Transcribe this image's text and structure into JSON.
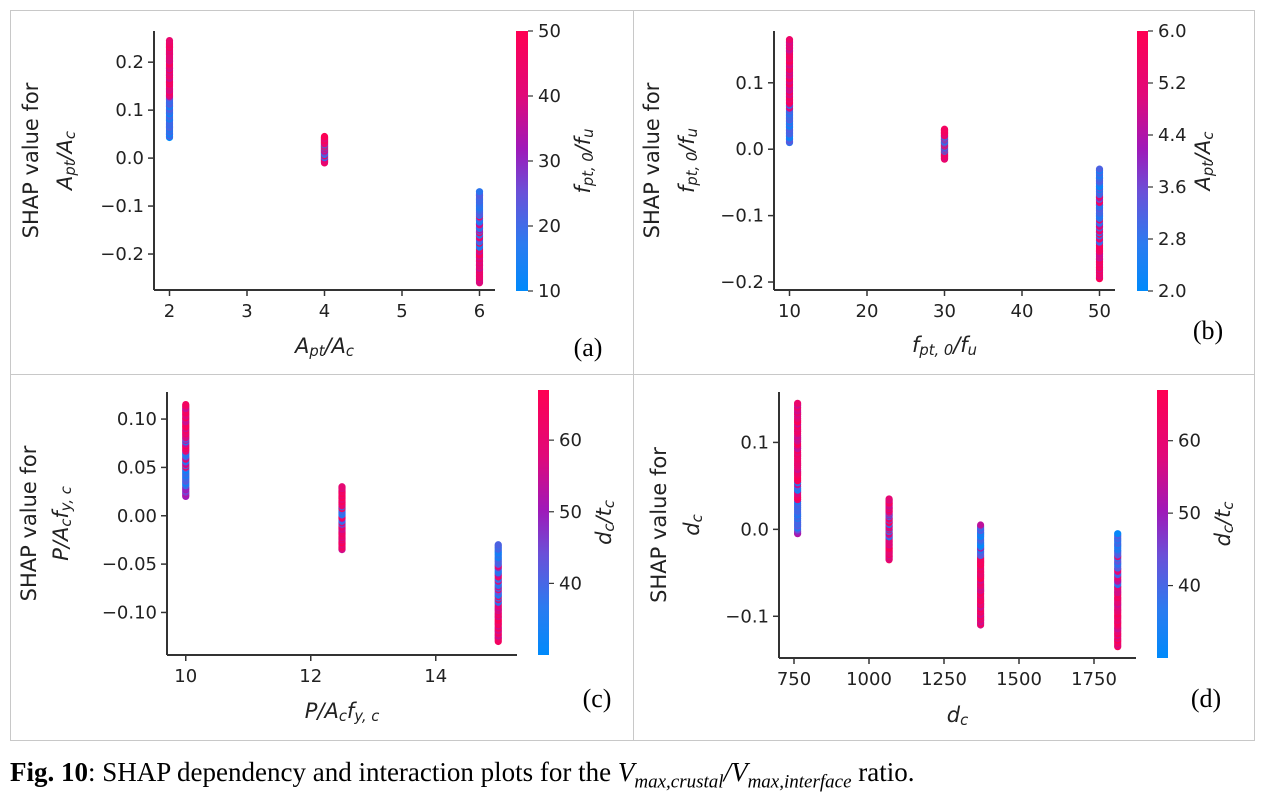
{
  "caption": {
    "label": "Fig. 10",
    "text_before": ": SHAP dependency and interaction plots for the ",
    "math": "Vmax,crustal/Vmax,interface",
    "text_after": " ratio."
  },
  "colors": {
    "low": "#1e88e5",
    "mid": "#7c3dc8",
    "high": "#ff0d57",
    "axis": "#333333",
    "frame": "#c8c8c8"
  },
  "chart_data": [
    {
      "type": "scatter",
      "panel": "(a)",
      "xlabel": "Apt/Ac",
      "ylabel_line1": "SHAP value for",
      "ylabel_line2": "Apt/Ac",
      "xlim": [
        1.8,
        6.2
      ],
      "ylim": [
        -0.275,
        0.265
      ],
      "xticks": [
        2,
        3,
        4,
        5,
        6
      ],
      "xtick_labels": [
        "2",
        "3",
        "4",
        "5",
        "6"
      ],
      "yticks": [
        -0.2,
        -0.1,
        0.0,
        0.1,
        0.2
      ],
      "ytick_labels": [
        "−0.2",
        "−0.1",
        "0.0",
        "0.1",
        "0.2"
      ],
      "colorbar": {
        "label": "fpt,0/fu",
        "min": 10,
        "max": 50,
        "ticks": [
          10,
          20,
          30,
          40,
          50
        ],
        "tick_labels": [
          "10",
          "20",
          "30",
          "40",
          "50"
        ]
      },
      "points": [
        {
          "x": 2,
          "y_min": 0.043,
          "y_max": 0.245,
          "low_y": [
            0.043,
            0.125
          ],
          "high_y": [
            0.13,
            0.245
          ]
        },
        {
          "x": 4,
          "y_min": -0.01,
          "y_max": 0.045,
          "low_y": [
            0.0,
            0.03
          ],
          "high_y": [
            -0.01,
            0.045
          ]
        },
        {
          "x": 6,
          "y_min": -0.26,
          "y_max": -0.07,
          "low_y": [
            -0.2,
            -0.07
          ],
          "high_y": [
            -0.26,
            -0.12
          ]
        }
      ]
    },
    {
      "type": "scatter",
      "panel": "(b)",
      "xlabel": "fpt,0/fu",
      "ylabel_line1": "SHAP value for",
      "ylabel_line2": "fpt,0/fu",
      "xlim": [
        8,
        52
      ],
      "ylim": [
        -0.212,
        0.178
      ],
      "xticks": [
        10,
        20,
        30,
        40,
        50
      ],
      "xtick_labels": [
        "10",
        "20",
        "30",
        "40",
        "50"
      ],
      "yticks": [
        -0.2,
        -0.1,
        0.0,
        0.1
      ],
      "ytick_labels": [
        "−0.2",
        "−0.1",
        "0.0",
        "0.1"
      ],
      "colorbar": {
        "label": "Apt/Ac",
        "min": 2.0,
        "max": 6.0,
        "ticks": [
          2.0,
          2.8,
          3.6,
          4.4,
          5.2,
          6.0
        ],
        "tick_labels": [
          "2.0",
          "2.8",
          "3.6",
          "4.4",
          "5.2",
          "6.0"
        ]
      },
      "points": [
        {
          "x": 10,
          "y_min": 0.01,
          "y_max": 0.165,
          "low_y": [
            0.01,
            0.07
          ],
          "high_y": [
            0.06,
            0.165
          ]
        },
        {
          "x": 30,
          "y_min": -0.015,
          "y_max": 0.03,
          "low_y": [
            -0.005,
            0.02
          ],
          "high_y": [
            -0.015,
            0.03
          ]
        },
        {
          "x": 50,
          "y_min": -0.195,
          "y_max": -0.03,
          "low_y": [
            -0.14,
            -0.03
          ],
          "high_y": [
            -0.195,
            -0.07
          ]
        }
      ]
    },
    {
      "type": "scatter",
      "panel": "(c)",
      "xlabel": "P/Acfy,c",
      "ylabel_line1": "SHAP value for",
      "ylabel_line2": "P/Acfy,c",
      "xlim": [
        9.7,
        15.3
      ],
      "ylim": [
        -0.144,
        0.128
      ],
      "xticks": [
        10,
        12,
        14
      ],
      "xtick_labels": [
        "10",
        "12",
        "14"
      ],
      "yticks": [
        -0.1,
        -0.05,
        0.0,
        0.05,
        0.1
      ],
      "ytick_labels": [
        "−0.10",
        "−0.05",
        "0.00",
        "0.05",
        "0.10"
      ],
      "colorbar": {
        "label": "dc/tc",
        "min": 30,
        "max": 67,
        "ticks": [
          40,
          50,
          60
        ],
        "tick_labels": [
          "40",
          "50",
          "60"
        ]
      },
      "points": [
        {
          "x": 10,
          "y_min": 0.02,
          "y_max": 0.115,
          "low_y": [
            0.03,
            0.08
          ],
          "high_y": [
            0.05,
            0.115
          ]
        },
        {
          "x": 12.5,
          "y_min": -0.035,
          "y_max": 0.03,
          "low_y": [
            -0.01,
            0.01
          ],
          "high_y": [
            -0.035,
            0.03
          ]
        },
        {
          "x": 15,
          "y_min": -0.13,
          "y_max": -0.03,
          "low_y": [
            -0.09,
            -0.03
          ],
          "high_y": [
            -0.13,
            -0.05
          ]
        }
      ]
    },
    {
      "type": "scatter",
      "panel": "(d)",
      "xlabel": "dc",
      "ylabel_line1": "SHAP value for",
      "ylabel_line2": "dc",
      "xlim": [
        700,
        1890
      ],
      "ylim": [
        -0.148,
        0.158
      ],
      "xticks": [
        750,
        1000,
        1250,
        1500,
        1750
      ],
      "xtick_labels": [
        "750",
        "1000",
        "1250",
        "1500",
        "1750"
      ],
      "yticks": [
        -0.1,
        0.0,
        0.1
      ],
      "ytick_labels": [
        "−0.1",
        "0.0",
        "0.1"
      ],
      "colorbar": {
        "label": "dc/tc",
        "min": 30,
        "max": 67,
        "ticks": [
          40,
          50,
          60
        ],
        "tick_labels": [
          "40",
          "50",
          "60"
        ]
      },
      "points": [
        {
          "x": 762,
          "y_min": -0.005,
          "y_max": 0.145,
          "low_y": [
            0.0,
            0.06
          ],
          "high_y": [
            0.02,
            0.145
          ]
        },
        {
          "x": 1067,
          "y_min": -0.035,
          "y_max": 0.035,
          "low_y": [
            -0.01,
            0.02
          ],
          "high_y": [
            -0.035,
            0.035
          ]
        },
        {
          "x": 1372,
          "y_min": -0.11,
          "y_max": 0.005,
          "low_y": [
            -0.03,
            0.005
          ],
          "high_y": [
            -0.11,
            -0.02
          ]
        },
        {
          "x": 1829,
          "y_min": -0.135,
          "y_max": -0.005,
          "low_y": [
            -0.07,
            -0.005
          ],
          "high_y": [
            -0.135,
            -0.03
          ]
        }
      ]
    }
  ]
}
